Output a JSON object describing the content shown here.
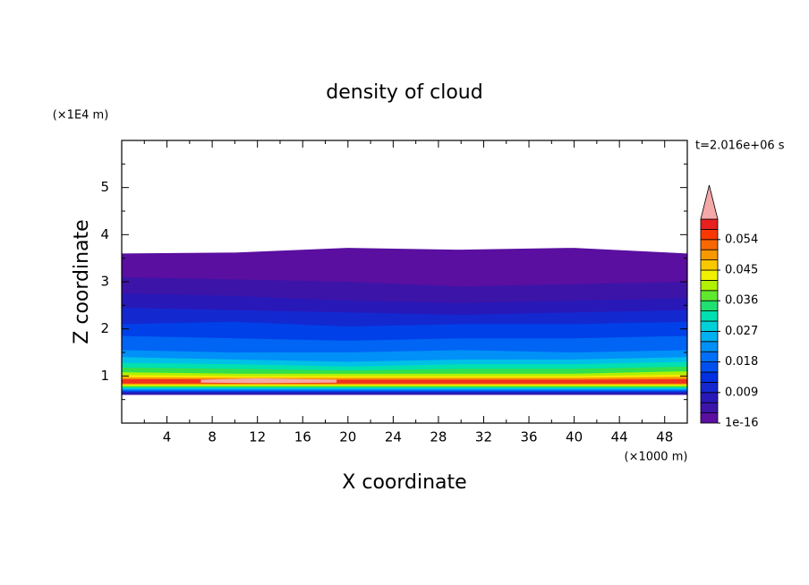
{
  "chart_data": {
    "type": "contour",
    "title": "density of cloud",
    "x_label": "X coordinate",
    "y_label": "Z coordinate",
    "x_unit": "(×1000 m)",
    "y_unit": "(×1E4 m)",
    "annotation": "t=2.016e+06 s",
    "xlim": [
      0,
      50
    ],
    "ylim": [
      0,
      6
    ],
    "xticks": [
      4,
      8,
      12,
      16,
      20,
      24,
      28,
      32,
      36,
      40,
      44,
      48
    ],
    "xminorticks": [
      2,
      6,
      10,
      14,
      18,
      22,
      26,
      30,
      34,
      38,
      42,
      46,
      50
    ],
    "yticks": [
      1,
      2,
      3,
      4,
      5
    ],
    "yminorticks": [
      0.5,
      1.5,
      2.5,
      3.5,
      4.5,
      5.5
    ],
    "grid": false,
    "colorbar": {
      "lim": [
        0,
        0.06
      ],
      "ticks": [
        1e-16,
        0.009,
        0.018,
        0.027,
        0.036,
        0.045,
        0.054
      ],
      "colors": [
        "#5a0fa0",
        "#3c14a8",
        "#2818b8",
        "#1428d0",
        "#0030e0",
        "#0050f0",
        "#0070f8",
        "#0090f8",
        "#00b0f0",
        "#00d0d8",
        "#00e0b0",
        "#20e070",
        "#60e830",
        "#b0f000",
        "#f0f000",
        "#f8c800",
        "#f89800",
        "#f86800",
        "#f83800",
        "#e82020"
      ],
      "extend_color": "#f4a8a8"
    },
    "layers": [
      {
        "color": "#5a0fa0",
        "x": [
          0,
          10,
          20,
          30,
          40,
          50
        ],
        "top": [
          3.6,
          3.62,
          3.72,
          3.68,
          3.72,
          3.6
        ],
        "bottom": [
          0.6,
          0.6,
          0.6,
          0.6,
          0.6,
          0.6
        ]
      },
      {
        "color": "#3c14a8",
        "x": [
          0,
          10,
          20,
          30,
          40,
          50
        ],
        "top": [
          3.1,
          3.05,
          3.0,
          2.9,
          2.95,
          3.0
        ],
        "bottom": [
          0.6,
          0.6,
          0.6,
          0.6,
          0.6,
          0.6
        ]
      },
      {
        "color": "#2818b8",
        "x": [
          0,
          10,
          20,
          30,
          40,
          50
        ],
        "top": [
          2.75,
          2.7,
          2.6,
          2.55,
          2.6,
          2.65
        ],
        "bottom": [
          0.62,
          0.62,
          0.62,
          0.62,
          0.62,
          0.62
        ]
      },
      {
        "color": "#1428d0",
        "x": [
          0,
          10,
          20,
          30,
          40,
          50
        ],
        "top": [
          2.45,
          2.4,
          2.35,
          2.3,
          2.35,
          2.4
        ],
        "bottom": [
          0.65,
          0.65,
          0.65,
          0.65,
          0.65,
          0.65
        ]
      },
      {
        "color": "#0040e8",
        "x": [
          0,
          10,
          20,
          30,
          40,
          50
        ],
        "top": [
          2.1,
          2.15,
          2.05,
          2.1,
          2.1,
          2.15
        ],
        "bottom": [
          0.66,
          0.66,
          0.66,
          0.66,
          0.66,
          0.66
        ]
      },
      {
        "color": "#0064f4",
        "x": [
          0,
          10,
          20,
          30,
          40,
          50
        ],
        "top": [
          1.85,
          1.8,
          1.75,
          1.8,
          1.8,
          1.85
        ],
        "bottom": [
          0.68,
          0.68,
          0.68,
          0.68,
          0.68,
          0.68
        ]
      },
      {
        "color": "#0090f8",
        "x": [
          0,
          10,
          20,
          30,
          40,
          50
        ],
        "top": [
          1.55,
          1.5,
          1.5,
          1.55,
          1.5,
          1.55
        ],
        "bottom": [
          0.7,
          0.7,
          0.7,
          0.7,
          0.7,
          0.7
        ]
      },
      {
        "color": "#00c0e8",
        "x": [
          0,
          10,
          20,
          30,
          40,
          50
        ],
        "top": [
          1.4,
          1.35,
          1.3,
          1.35,
          1.35,
          1.4
        ],
        "bottom": [
          0.72,
          0.72,
          0.72,
          0.72,
          0.72,
          0.72
        ]
      },
      {
        "color": "#00e0b0",
        "x": [
          0,
          10,
          20,
          30,
          40,
          50
        ],
        "top": [
          1.28,
          1.25,
          1.2,
          1.25,
          1.25,
          1.3
        ],
        "bottom": [
          0.74,
          0.74,
          0.74,
          0.74,
          0.74,
          0.74
        ]
      },
      {
        "color": "#30e050",
        "x": [
          0,
          10,
          20,
          30,
          40,
          50
        ],
        "top": [
          1.18,
          1.15,
          1.12,
          1.15,
          1.15,
          1.2
        ],
        "bottom": [
          0.76,
          0.76,
          0.76,
          0.76,
          0.76,
          0.76
        ]
      },
      {
        "color": "#b0f000",
        "x": [
          0,
          10,
          20,
          30,
          40,
          50
        ],
        "top": [
          1.08,
          1.05,
          1.05,
          1.05,
          1.05,
          1.1
        ],
        "bottom": [
          0.78,
          0.78,
          0.78,
          0.78,
          0.78,
          0.78
        ]
      },
      {
        "color": "#f8e800",
        "x": [
          0,
          10,
          20,
          30,
          40,
          50
        ],
        "top": [
          1.02,
          1.0,
          1.0,
          1.0,
          1.0,
          1.03
        ],
        "bottom": [
          0.8,
          0.8,
          0.8,
          0.8,
          0.8,
          0.8
        ]
      },
      {
        "color": "#f89000",
        "x": [
          0,
          10,
          20,
          30,
          40,
          50
        ],
        "top": [
          0.97,
          0.96,
          0.96,
          0.96,
          0.96,
          0.98
        ],
        "bottom": [
          0.82,
          0.82,
          0.82,
          0.82,
          0.82,
          0.82
        ]
      },
      {
        "color": "#f03020",
        "x": [
          0,
          10,
          20,
          30,
          40,
          50
        ],
        "top": [
          0.93,
          0.93,
          0.92,
          0.92,
          0.92,
          0.93
        ],
        "bottom": [
          0.84,
          0.84,
          0.84,
          0.84,
          0.84,
          0.84
        ]
      },
      {
        "color": "#f4a8a8",
        "x": [
          7,
          12,
          19
        ],
        "top": [
          0.92,
          0.95,
          0.92
        ],
        "bottom": [
          0.86,
          0.85,
          0.86
        ]
      }
    ]
  }
}
